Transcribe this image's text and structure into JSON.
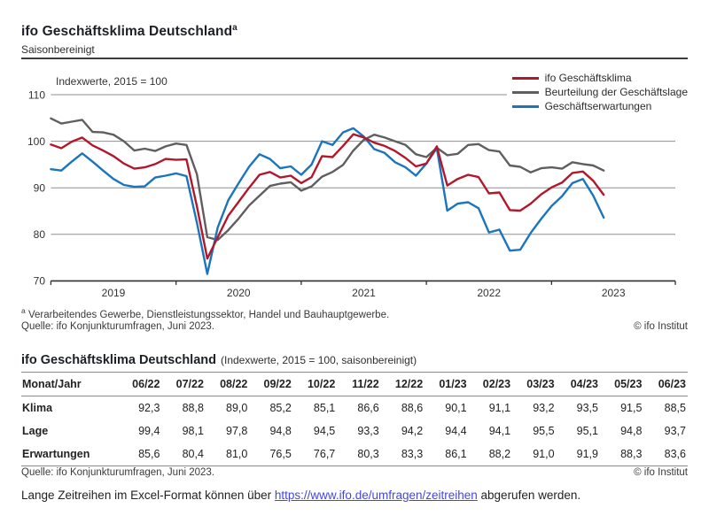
{
  "header": {
    "title": "ifo Geschäftsklima Deutschland",
    "title_sup": "a",
    "subtitle": "Saisonbereinigt"
  },
  "chart": {
    "axis_note": "Indexwerte, 2015 = 100",
    "y_ticks": [
      110,
      100,
      90,
      80,
      70
    ],
    "year_labels": [
      "2019",
      "2020",
      "2021",
      "2022",
      "2023"
    ]
  },
  "chart_data": {
    "type": "line",
    "title": "ifo Geschäftsklima Deutschland, saisonbereinigt",
    "ylabel": "Indexwerte, 2015 = 100",
    "ylim": [
      70,
      110
    ],
    "grid": true,
    "legend_position": "top-right",
    "x": [
      "2019-01",
      "2019-02",
      "2019-03",
      "2019-04",
      "2019-05",
      "2019-06",
      "2019-07",
      "2019-08",
      "2019-09",
      "2019-10",
      "2019-11",
      "2019-12",
      "2020-01",
      "2020-02",
      "2020-03",
      "2020-04",
      "2020-05",
      "2020-06",
      "2020-07",
      "2020-08",
      "2020-09",
      "2020-10",
      "2020-11",
      "2020-12",
      "2021-01",
      "2021-02",
      "2021-03",
      "2021-04",
      "2021-05",
      "2021-06",
      "2021-07",
      "2021-08",
      "2021-09",
      "2021-10",
      "2021-11",
      "2021-12",
      "2022-01",
      "2022-02",
      "2022-03",
      "2022-04",
      "2022-05",
      "2022-06",
      "2022-07",
      "2022-08",
      "2022-09",
      "2022-10",
      "2022-11",
      "2022-12",
      "2023-01",
      "2023-02",
      "2023-03",
      "2023-04",
      "2023-05",
      "2023-06"
    ],
    "series": [
      {
        "name": "ifo Geschäftsklima",
        "color": "#b2182b",
        "values": [
          99.3,
          98.5,
          99.9,
          100.8,
          99.1,
          98.0,
          96.8,
          95.2,
          94.1,
          94.4,
          95.1,
          96.2,
          96.0,
          96.1,
          86.0,
          74.8,
          79.4,
          84.0,
          87.0,
          90.0,
          92.8,
          93.4,
          92.2,
          92.6,
          91.0,
          92.3,
          96.8,
          96.6,
          99.0,
          101.5,
          100.8,
          99.7,
          99.0,
          97.9,
          96.4,
          94.6,
          95.2,
          98.9,
          90.5,
          91.9,
          92.8,
          92.3,
          88.8,
          89.0,
          85.2,
          85.1,
          86.6,
          88.6,
          90.1,
          91.1,
          93.2,
          93.5,
          91.5,
          88.5
        ]
      },
      {
        "name": "Beurteilung der Geschäftslage",
        "color": "#5f5f5f",
        "values": [
          104.9,
          103.8,
          104.2,
          104.6,
          102.0,
          101.9,
          101.4,
          100.0,
          98.0,
          98.4,
          97.9,
          98.9,
          99.5,
          99.2,
          92.9,
          79.4,
          78.8,
          80.9,
          83.4,
          86.2,
          88.3,
          90.4,
          90.9,
          91.2,
          89.4,
          90.3,
          92.4,
          93.4,
          94.9,
          98.0,
          100.3,
          101.4,
          100.8,
          100.0,
          99.2,
          97.2,
          96.6,
          98.6,
          97.0,
          97.3,
          99.2,
          99.4,
          98.1,
          97.8,
          94.8,
          94.5,
          93.3,
          94.2,
          94.4,
          94.1,
          95.5,
          95.1,
          94.8,
          93.7
        ]
      },
      {
        "name": "Geschäftserwartungen",
        "color": "#1a75bc",
        "values": [
          94.0,
          93.7,
          95.6,
          97.4,
          95.6,
          93.7,
          91.9,
          90.6,
          90.2,
          90.3,
          92.2,
          92.6,
          93.1,
          92.5,
          82.5,
          71.5,
          81.5,
          87.3,
          91.0,
          94.5,
          97.2,
          96.2,
          94.2,
          94.6,
          92.8,
          95.0,
          100.0,
          99.2,
          101.9,
          102.8,
          101.0,
          98.3,
          97.5,
          95.5,
          94.4,
          92.6,
          95.2,
          98.5,
          85.1,
          86.6,
          86.9,
          85.6,
          80.4,
          81.0,
          76.5,
          76.7,
          80.3,
          83.3,
          86.1,
          88.2,
          91.0,
          91.9,
          88.3,
          83.6
        ]
      }
    ]
  },
  "footnotes": {
    "marker": "a",
    "text": "Verarbeitendes Gewerbe, Dienstleistungssektor, Handel und Bauhauptgewerbe.",
    "source": "Quelle: ifo Konjunkturumfragen, Juni 2023.",
    "copyright": "© ifo Institut"
  },
  "table": {
    "title": "ifo Geschäftsklima Deutschland",
    "title_note": "(Indexwerte, 2015 = 100, saisonbereinigt)",
    "col_header": "Monat/Jahr",
    "columns": [
      "06/22",
      "07/22",
      "08/22",
      "09/22",
      "10/22",
      "11/22",
      "12/22",
      "01/23",
      "02/23",
      "03/23",
      "04/23",
      "05/23",
      "06/23"
    ],
    "rows": [
      {
        "label": "Klima",
        "values": [
          "92,3",
          "88,8",
          "89,0",
          "85,2",
          "85,1",
          "86,6",
          "88,6",
          "90,1",
          "91,1",
          "93,2",
          "93,5",
          "91,5",
          "88,5"
        ]
      },
      {
        "label": "Lage",
        "values": [
          "99,4",
          "98,1",
          "97,8",
          "94,8",
          "94,5",
          "93,3",
          "94,2",
          "94,4",
          "94,1",
          "95,5",
          "95,1",
          "94,8",
          "93,7"
        ]
      },
      {
        "label": "Erwartungen",
        "values": [
          "85,6",
          "80,4",
          "81,0",
          "76,5",
          "76,7",
          "80,3",
          "83,3",
          "86,1",
          "88,2",
          "91,0",
          "91,9",
          "88,3",
          "83,6"
        ]
      }
    ],
    "source": "Quelle: ifo Konjunkturumfragen, Juni 2023.",
    "copyright": "© ifo Institut"
  },
  "bottom_note": {
    "prefix": "Lange Zeitreihen im Excel-Format können über ",
    "link": "https://www.ifo.de/umfragen/zeitreihen",
    "suffix": " abgerufen werden."
  }
}
